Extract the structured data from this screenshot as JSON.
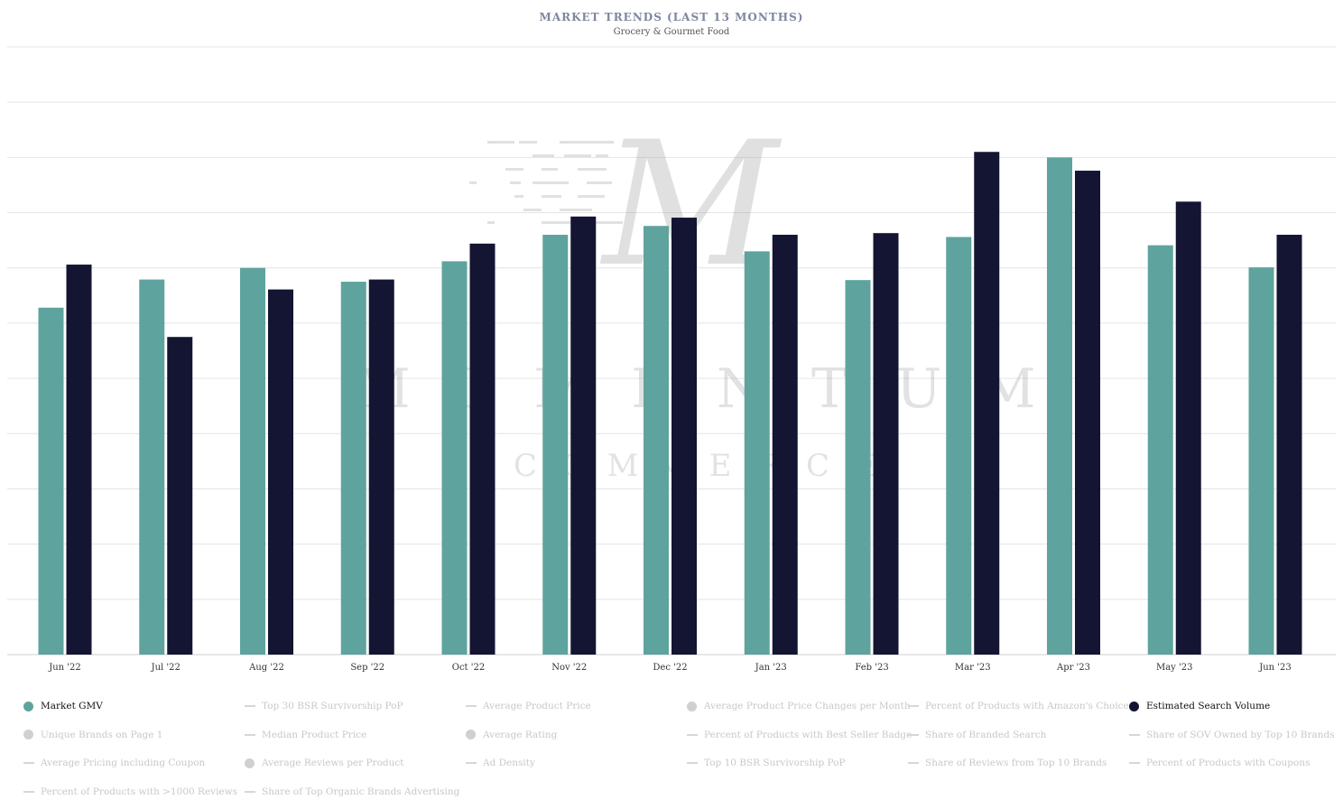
{
  "header": {
    "title": "MARKET TRENDS (LAST 13 MONTHS)",
    "subtitle": "Grocery & Gourmet Food"
  },
  "watermark": {
    "letters_top": [
      "M",
      "O",
      "M",
      "E",
      "N",
      "T",
      "U",
      "M"
    ],
    "letters_bottom": [
      "C",
      "O",
      "M",
      "M",
      "E",
      "R",
      "C",
      "E"
    ],
    "monogram": "M"
  },
  "colors": {
    "market_gmv": "#5fa39e",
    "search_volume": "#141532",
    "grid": "#e4e4e4",
    "inactive": "#d0d0d0"
  },
  "chart_data": {
    "type": "bar",
    "title": "MARKET TRENDS (LAST 13 MONTHS)",
    "subtitle": "Grocery & Gourmet Food",
    "xlabel": "",
    "ylabel": "",
    "grid": true,
    "legend_position": "bottom",
    "ylim": [
      0,
      11
    ],
    "categories": [
      "Jun '22",
      "Jul '22",
      "Aug '22",
      "Sep '22",
      "Oct '22",
      "Nov '22",
      "Dec '22",
      "Jan '23",
      "Feb '23",
      "Mar '23",
      "Apr '23",
      "May '23",
      "Jun '23"
    ],
    "series": [
      {
        "name": "Market GMV",
        "color": "#5fa39e",
        "values": [
          6.28,
          6.79,
          7.0,
          6.75,
          7.12,
          7.6,
          7.76,
          7.3,
          6.78,
          7.56,
          9.0,
          7.41,
          7.01
        ]
      },
      {
        "name": "Estimated Search Volume",
        "color": "#141532",
        "values": [
          7.06,
          5.75,
          6.61,
          6.79,
          7.44,
          7.93,
          7.91,
          7.6,
          7.63,
          9.1,
          8.76,
          8.2,
          7.6
        ]
      }
    ]
  },
  "legend": {
    "items": [
      {
        "label": "Market GMV",
        "marker": "dot",
        "active": true,
        "color": "#5fa39e"
      },
      {
        "label": "Top 30 BSR Survivorship PoP",
        "marker": "line",
        "active": false
      },
      {
        "label": "Average Product Price",
        "marker": "line",
        "active": false
      },
      {
        "label": "Average Product Price Changes per Month",
        "marker": "dot",
        "active": false
      },
      {
        "label": "Percent of Products with Amazon's Choice",
        "marker": "line",
        "active": false
      },
      {
        "label": "Estimated Search Volume",
        "marker": "dot",
        "active": true,
        "color": "#141532"
      },
      {
        "label": "Unique Brands on Page 1",
        "marker": "dot",
        "active": false
      },
      {
        "label": "Median Product Price",
        "marker": "line",
        "active": false
      },
      {
        "label": "Average Rating",
        "marker": "dot",
        "active": false
      },
      {
        "label": "Percent of Products with Best Seller Badge",
        "marker": "line",
        "active": false
      },
      {
        "label": "Share of Branded Search",
        "marker": "line",
        "active": false
      },
      {
        "label": "Share of SOV Owned by Top 10 Brands",
        "marker": "line",
        "active": false
      },
      {
        "label": "Average Pricing including Coupon",
        "marker": "line",
        "active": false
      },
      {
        "label": "Average Reviews per Product",
        "marker": "dot",
        "active": false
      },
      {
        "label": "Ad Density",
        "marker": "line",
        "active": false
      },
      {
        "label": "Top 10 BSR Survivorship PoP",
        "marker": "line",
        "active": false
      },
      {
        "label": "Share of Reviews from Top 10 Brands",
        "marker": "line",
        "active": false
      },
      {
        "label": "Percent of Products with Coupons",
        "marker": "line",
        "active": false
      },
      {
        "label": "Percent of Products with >1000 Reviews",
        "marker": "line",
        "active": false
      },
      {
        "label": "Share of Top Organic Brands Advertising",
        "marker": "line",
        "active": false
      }
    ]
  }
}
